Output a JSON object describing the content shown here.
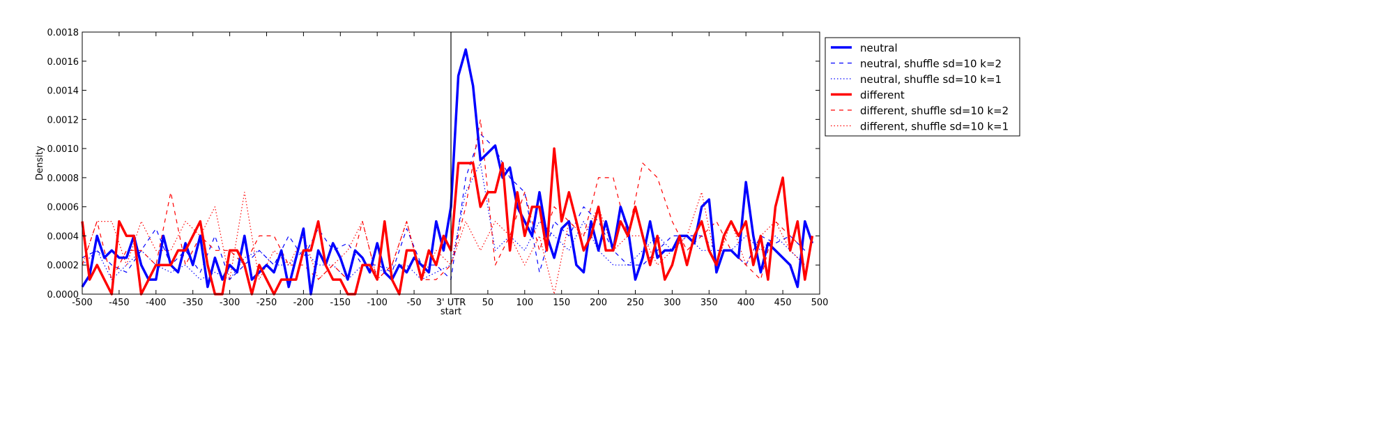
{
  "chart_data": {
    "type": "line",
    "title": "",
    "xlabel": "start",
    "ylabel": "Density",
    "xlim": [
      -500,
      500
    ],
    "ylim": [
      0,
      0.0018
    ],
    "grid": false,
    "legend_position": "outside-top-right",
    "vline_x": 0,
    "x_ticks": [
      -500,
      -450,
      -400,
      -350,
      -300,
      -250,
      -200,
      -150,
      -100,
      -50,
      0,
      50,
      100,
      150,
      200,
      250,
      300,
      350,
      400,
      450,
      500
    ],
    "x_tick_labels": [
      "-500",
      "-450",
      "-400",
      "-350",
      "-300",
      "-250",
      "-200",
      "-150",
      "-100",
      "-50",
      "3' UTR",
      "50",
      "100",
      "150",
      "200",
      "250",
      "300",
      "350",
      "400",
      "450",
      "500"
    ],
    "y_ticks": [
      0,
      0.0002,
      0.0004,
      0.0006,
      0.0008,
      0.001,
      0.0012,
      0.0014,
      0.0016,
      0.0018
    ],
    "y_tick_labels": [
      "0.0000",
      "0.0002",
      "0.0004",
      "0.0006",
      "0.0008",
      "0.0010",
      "0.0012",
      "0.0014",
      "0.0016",
      "0.0018"
    ],
    "series": [
      {
        "name": "neutral",
        "color": "#0000ff",
        "style": "solid",
        "width": 3.5,
        "x_start": -500,
        "x_step": 10,
        "values": [
          5e-05,
          0.00013,
          0.0004,
          0.00025,
          0.0003,
          0.00025,
          0.00025,
          0.0004,
          0.0002,
          0.0001,
          0.0001,
          0.0004,
          0.0002,
          0.00015,
          0.00035,
          0.0002,
          0.0004,
          5e-05,
          0.00025,
          0.0001,
          0.0002,
          0.00015,
          0.0004,
          0.0001,
          0.00015,
          0.0002,
          0.00015,
          0.0003,
          5e-05,
          0.00025,
          0.00045,
          0,
          0.0003,
          0.0002,
          0.00035,
          0.00025,
          0.0001,
          0.0003,
          0.00025,
          0.00015,
          0.00035,
          0.00015,
          0.0001,
          0.0002,
          0.00015,
          0.00025,
          0.0002,
          0.00015,
          0.0005,
          0.0003,
          0.0006,
          0.0015,
          0.00168,
          0.00143,
          0.00092,
          0.00097,
          0.00102,
          0.0008,
          0.00087,
          0.0006,
          0.0005,
          0.0004,
          0.0007,
          0.0004,
          0.00025,
          0.00045,
          0.0005,
          0.0002,
          0.00015,
          0.0005,
          0.0003,
          0.0005,
          0.0003,
          0.0006,
          0.00045,
          0.0001,
          0.00025,
          0.0005,
          0.00025,
          0.0003,
          0.0003,
          0.0004,
          0.0004,
          0.00035,
          0.0006,
          0.00065,
          0.00015,
          0.0003,
          0.0003,
          0.00025,
          0.00077,
          0.0004,
          0.00015,
          0.00035,
          0.0003,
          0.00025,
          0.0002,
          5e-05,
          0.0005,
          0.00035
        ]
      },
      {
        "name": "neutral, shuffle sd=10 k=2",
        "color": "#0000ff",
        "style": "dashed",
        "width": 1.2,
        "x_start": -500,
        "x_step": 20,
        "values": [
          0.00025,
          0.0003,
          0.0002,
          0.00015,
          0.0003,
          0.00045,
          0.0002,
          0.0003,
          0.00015,
          0.0004,
          0.0001,
          0.0002,
          0.0003,
          0.0002,
          0.0004,
          0.00025,
          0.00045,
          0.0003,
          0.00035,
          0.0002,
          0.0002,
          0.00015,
          0.00045,
          0.0002,
          0.0002,
          0.0001,
          0.0008,
          0.0011,
          0.001,
          0.0008,
          0.0007,
          0.00015,
          0.0005,
          0.0004,
          0.0006,
          0.0005,
          0.0003,
          0.0002,
          0.0002,
          0.0003,
          0.0004,
          0.0004,
          0.0004,
          0.0003,
          0.0003,
          0.0002,
          0.0004,
          0.00035,
          0.0004,
          0.0003
        ]
      },
      {
        "name": "neutral, shuffle sd=10 k=1",
        "color": "#0000ff",
        "style": "dotted",
        "width": 1.2,
        "x_start": -500,
        "x_step": 20,
        "values": [
          0.0002,
          0.0003,
          0.0001,
          0.0002,
          0.0003,
          0.0002,
          0.00015,
          0.0002,
          0.0001,
          0.00015,
          0.0001,
          0.00025,
          0.0003,
          0.0002,
          0.0002,
          0.0003,
          0.0002,
          0.0002,
          0.0001,
          0.0002,
          0.00015,
          0.0002,
          0.0002,
          0.0001,
          0.00015,
          0.0002,
          0.0007,
          0.0009,
          0.0003,
          0.0004,
          0.0003,
          0.0005,
          0.0004,
          0.0003,
          0.0005,
          0.0003,
          0.0002,
          0.0002,
          0.0003,
          0.0004,
          0.0003,
          0.0004,
          0.0003,
          0.0003,
          0.0003,
          0.0004,
          0.0003,
          0.0004,
          0.0003,
          0.0002
        ]
      },
      {
        "name": "different",
        "color": "#ff0000",
        "style": "solid",
        "width": 3.5,
        "x_start": -500,
        "x_step": 10,
        "values": [
          0.0005,
          0.0001,
          0.0002,
          0.0001,
          0,
          0.0005,
          0.0004,
          0.0004,
          0,
          0.0001,
          0.0002,
          0.0002,
          0.0002,
          0.0003,
          0.0003,
          0.0004,
          0.0005,
          0.0002,
          0,
          0,
          0.0003,
          0.0003,
          0.0002,
          0,
          0.0002,
          0.0001,
          0,
          0.0001,
          0.0001,
          0.0001,
          0.0003,
          0.0003,
          0.0005,
          0.0002,
          0.0001,
          0.0001,
          0,
          0,
          0.0002,
          0.0002,
          0.0001,
          0.0005,
          0.0001,
          0,
          0.0003,
          0.0003,
          0.0001,
          0.0003,
          0.0002,
          0.0004,
          0.0003,
          0.0009,
          0.0009,
          0.0009,
          0.0006,
          0.0007,
          0.0007,
          0.0009,
          0.0003,
          0.0007,
          0.0004,
          0.0006,
          0.0006,
          0.0003,
          0.001,
          0.0005,
          0.0007,
          0.0005,
          0.0003,
          0.0004,
          0.0006,
          0.0003,
          0.0003,
          0.0005,
          0.0004,
          0.0006,
          0.0004,
          0.0002,
          0.0004,
          0.0001,
          0.0002,
          0.0004,
          0.0002,
          0.0004,
          0.0005,
          0.0003,
          0.0002,
          0.0004,
          0.0005,
          0.0004,
          0.0005,
          0.0002,
          0.0004,
          0.0001,
          0.0006,
          0.0008,
          0.0003,
          0.0005,
          0.0001,
          0.0004
        ]
      },
      {
        "name": "different, shuffle sd=10 k=2",
        "color": "#ff0000",
        "style": "dashed",
        "width": 1.2,
        "x_start": -500,
        "x_step": 20,
        "values": [
          0.0002,
          0.0005,
          0.0001,
          0.0003,
          0.0003,
          0.0002,
          0.0007,
          0.0002,
          0.0004,
          0.0003,
          0.0003,
          0.0002,
          0.0004,
          0.0004,
          0.0002,
          0.0002,
          0.0001,
          0.0002,
          0.0001,
          0.0005,
          0.0001,
          0.0002,
          0.0005,
          0.0001,
          0.0001,
          0.0002,
          0.0006,
          0.0012,
          0.0002,
          0.0004,
          0.0007,
          0.0003,
          0.0006,
          0.0005,
          0.0004,
          0.0008,
          0.0008,
          0.0004,
          0.0009,
          0.0008,
          0.0005,
          0.0003,
          0.0004,
          0.0005,
          0.0003,
          0.0002,
          0.0001,
          0.0005,
          0.0004,
          0.0003
        ]
      },
      {
        "name": "different, shuffle sd=10 k=1",
        "color": "#ff0000",
        "style": "dotted",
        "width": 1.2,
        "x_start": -500,
        "x_step": 20,
        "values": [
          0.0002,
          0.0005,
          0.0005,
          0.0002,
          0.0005,
          0.0003,
          0.0003,
          0.0005,
          0.0004,
          0.0006,
          0.0001,
          0.0007,
          0.0001,
          0.0003,
          0.0002,
          0.0004,
          0.0001,
          0.0002,
          0.0003,
          0.0005,
          0.0001,
          0.0002,
          0.0005,
          0.0001,
          0.0003,
          0.0002,
          0.0005,
          0.0003,
          0.0005,
          0.0004,
          0.0002,
          0.0004,
          0,
          0.0005,
          0.0004,
          0.0006,
          0.0003,
          0.0004,
          0.0004,
          0.0002,
          0.0003,
          0.0004,
          0.0007,
          0.0002,
          0.0005,
          0.0002,
          0.0004,
          0.0005,
          0.0003,
          0.0002
        ]
      }
    ]
  }
}
